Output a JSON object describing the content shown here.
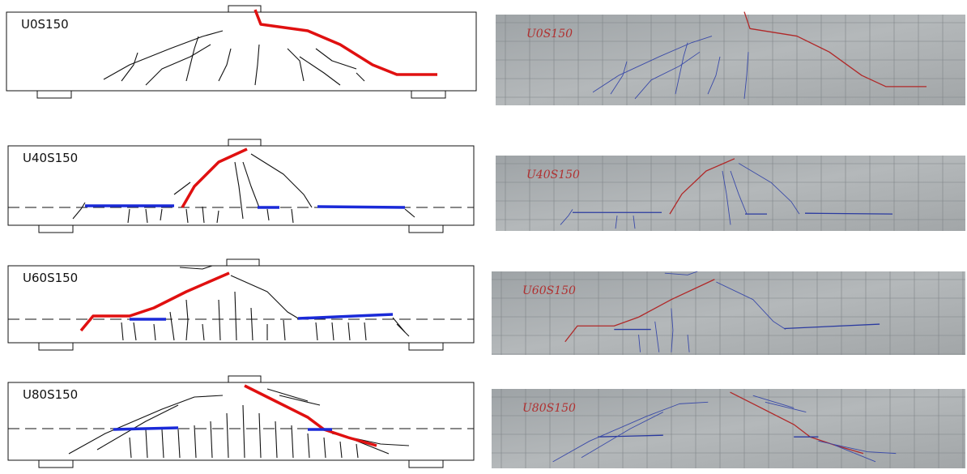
{
  "panels": [
    {
      "label": "U0S150",
      "photo_label": "U0S150"
    },
    {
      "label": "U40S150",
      "photo_label": "U40S150"
    },
    {
      "label": "U60S150",
      "photo_label": "U60S150"
    },
    {
      "label": "U80S150",
      "photo_label": "U80S150"
    }
  ]
}
